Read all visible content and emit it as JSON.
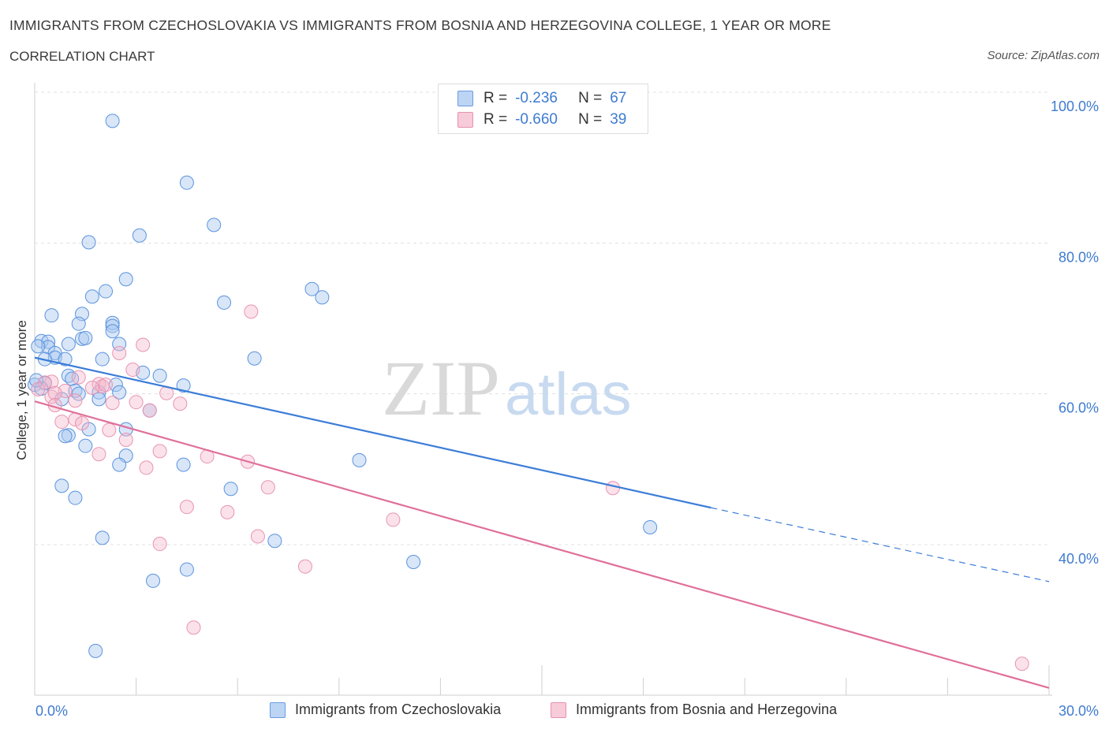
{
  "header": {
    "title": "IMMIGRANTS FROM CZECHOSLOVAKIA VS IMMIGRANTS FROM BOSNIA AND HERZEGOVINA COLLEGE, 1 YEAR OR MORE",
    "subtitle": "CORRELATION CHART",
    "source": "Source: ZipAtlas.com"
  },
  "watermark": {
    "zip": "ZIP",
    "atlas": "atlas"
  },
  "legend": {
    "rows": [
      {
        "r_label": "R =",
        "r_value": "-0.236",
        "n_label": "N =",
        "n_value": "67"
      },
      {
        "r_label": "R =",
        "r_value": "-0.660",
        "n_label": "N =",
        "n_value": "39"
      }
    ]
  },
  "chart_data": {
    "type": "scatter",
    "title": "IMMIGRANTS FROM CZECHOSLOVAKIA VS IMMIGRANTS FROM BOSNIA AND HERZEGOVINA COLLEGE, 1 YEAR OR MORE",
    "subtitle": "CORRELATION CHART",
    "ylabel": "College, 1 year or more",
    "xlabel": "",
    "xlim": [
      0,
      30
    ],
    "ylim": [
      20,
      102
    ],
    "x_tick_labels": [
      "0.0%",
      "30.0%"
    ],
    "y_ticks": [
      40,
      60,
      80,
      100
    ],
    "y_tick_labels": [
      "40.0%",
      "60.0%",
      "80.0%",
      "100.0%"
    ],
    "grid": true,
    "legend_position": "top-center",
    "colors": {
      "blue": "#3b7dd8",
      "blue_fill": "#a9c8f0",
      "pink": "#e0709a",
      "pink_fill": "#f4b6cb"
    },
    "series": [
      {
        "name": "Immigrants from Czechoslovakia",
        "color": "#3b7dd8",
        "trend": {
          "x": [
            0,
            20
          ],
          "y": [
            64.8,
            44.9
          ],
          "dashed_to": [
            30,
            35.1
          ]
        },
        "points": [
          [
            2.3,
            96.2
          ],
          [
            4.5,
            88.0
          ],
          [
            5.3,
            82.4
          ],
          [
            3.1,
            81.0
          ],
          [
            1.6,
            80.1
          ],
          [
            2.7,
            75.2
          ],
          [
            8.2,
            73.9
          ],
          [
            8.5,
            72.8
          ],
          [
            2.1,
            73.6
          ],
          [
            1.7,
            72.9
          ],
          [
            5.6,
            72.1
          ],
          [
            0.5,
            70.4
          ],
          [
            1.4,
            70.6
          ],
          [
            2.3,
            69.4
          ],
          [
            1.3,
            69.3
          ],
          [
            2.3,
            69.0
          ],
          [
            2.3,
            68.3
          ],
          [
            1.4,
            67.3
          ],
          [
            1.5,
            67.4
          ],
          [
            0.2,
            67.0
          ],
          [
            0.4,
            66.9
          ],
          [
            1.0,
            66.6
          ],
          [
            2.5,
            66.6
          ],
          [
            0.4,
            66.2
          ],
          [
            0.1,
            66.3
          ],
          [
            0.6,
            65.4
          ],
          [
            0.6,
            64.8
          ],
          [
            0.3,
            64.6
          ],
          [
            0.9,
            64.6
          ],
          [
            2.0,
            64.6
          ],
          [
            6.5,
            64.7
          ],
          [
            3.2,
            62.8
          ],
          [
            3.7,
            62.4
          ],
          [
            1.0,
            62.4
          ],
          [
            1.1,
            62.0
          ],
          [
            2.4,
            61.2
          ],
          [
            0.3,
            61.4
          ],
          [
            0.0,
            61.2
          ],
          [
            0.2,
            60.7
          ],
          [
            4.4,
            61.1
          ],
          [
            1.2,
            60.4
          ],
          [
            1.3,
            60.0
          ],
          [
            2.5,
            60.2
          ],
          [
            1.9,
            60.2
          ],
          [
            1.9,
            59.3
          ],
          [
            0.8,
            59.3
          ],
          [
            3.4,
            57.8
          ],
          [
            1.6,
            55.3
          ],
          [
            2.7,
            55.3
          ],
          [
            1.0,
            54.5
          ],
          [
            0.9,
            54.4
          ],
          [
            1.5,
            53.1
          ],
          [
            2.7,
            51.8
          ],
          [
            9.6,
            51.2
          ],
          [
            2.5,
            50.6
          ],
          [
            4.4,
            50.6
          ],
          [
            5.8,
            47.4
          ],
          [
            0.8,
            47.8
          ],
          [
            1.2,
            46.2
          ],
          [
            18.2,
            42.3
          ],
          [
            7.1,
            40.5
          ],
          [
            2.0,
            40.9
          ],
          [
            11.2,
            37.7
          ],
          [
            4.5,
            36.7
          ],
          [
            3.5,
            35.2
          ],
          [
            1.8,
            25.9
          ],
          [
            0.05,
            61.8
          ]
        ]
      },
      {
        "name": "Immigrants from Bosnia and Herzegovina",
        "color": "#e0709a",
        "trend": {
          "x": [
            0,
            30
          ],
          "y": [
            59.0,
            21.0
          ]
        },
        "points": [
          [
            6.4,
            70.9
          ],
          [
            3.2,
            66.5
          ],
          [
            2.5,
            65.4
          ],
          [
            2.9,
            63.2
          ],
          [
            1.3,
            62.2
          ],
          [
            0.5,
            61.6
          ],
          [
            0.3,
            61.5
          ],
          [
            1.9,
            61.3
          ],
          [
            2.0,
            61.0
          ],
          [
            2.1,
            61.2
          ],
          [
            1.7,
            60.8
          ],
          [
            3.9,
            60.1
          ],
          [
            0.9,
            60.4
          ],
          [
            0.5,
            59.6
          ],
          [
            0.6,
            60.1
          ],
          [
            1.2,
            59.1
          ],
          [
            2.3,
            58.8
          ],
          [
            3.0,
            58.9
          ],
          [
            4.3,
            58.7
          ],
          [
            0.6,
            58.5
          ],
          [
            0.1,
            60.6
          ],
          [
            3.4,
            57.8
          ],
          [
            1.2,
            56.6
          ],
          [
            1.4,
            56.1
          ],
          [
            0.8,
            56.3
          ],
          [
            2.2,
            55.2
          ],
          [
            2.7,
            53.9
          ],
          [
            3.7,
            52.4
          ],
          [
            1.9,
            52.0
          ],
          [
            5.1,
            51.7
          ],
          [
            6.3,
            51.0
          ],
          [
            3.3,
            50.2
          ],
          [
            17.1,
            47.5
          ],
          [
            6.9,
            47.6
          ],
          [
            4.5,
            45.0
          ],
          [
            5.7,
            44.3
          ],
          [
            10.6,
            43.3
          ],
          [
            6.6,
            41.1
          ],
          [
            3.7,
            40.1
          ],
          [
            8.0,
            37.1
          ],
          [
            4.7,
            29.0
          ],
          [
            29.2,
            24.2
          ]
        ]
      }
    ],
    "legend_entries": [
      "Immigrants from Czechoslovakia",
      "Immigrants from Bosnia and Herzegovina"
    ]
  }
}
